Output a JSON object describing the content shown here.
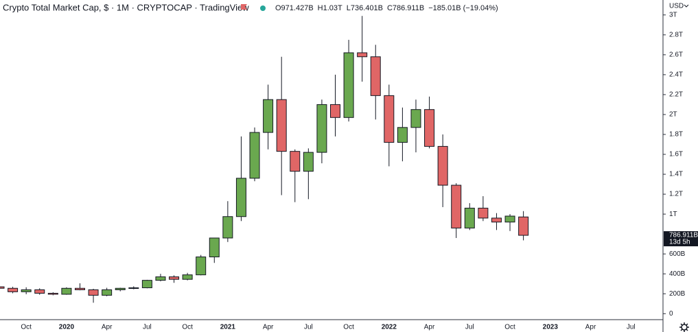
{
  "chart_data": {
    "type": "candlestick",
    "title": "Crypto Total Market Cap, $ · 1M · CRYPTOCAP · TradingView",
    "ohlc_header": [
      "O971.427B",
      "H1.03T",
      "L736.401B",
      "C786.911B",
      "−185.01B (−19.04%)"
    ],
    "currency": "USD",
    "last_price_label": "786.911B",
    "countdown": "13d 5h",
    "up_color": "#6aa84f",
    "down_color": "#e06666",
    "categories": [
      null,
      null,
      "Oct",
      null,
      null,
      "2020",
      null,
      null,
      "Apr",
      null,
      null,
      "Jul",
      null,
      null,
      "Oct",
      null,
      null,
      "2021",
      null,
      null,
      "Apr",
      null,
      null,
      "Jul",
      null,
      null,
      "Oct",
      null,
      null,
      "2022",
      null,
      null,
      "Apr",
      null,
      null,
      "Jul",
      null,
      null,
      "Oct",
      null,
      null,
      "2023",
      null,
      null,
      "Apr",
      null,
      null,
      "Jul"
    ],
    "open": [
      270,
      255,
      220,
      240,
      205,
      195,
      255,
      240,
      185,
      240,
      255,
      260,
      335,
      370,
      345,
      390,
      570,
      760,
      975,
      1360,
      1820,
      2150,
      1630,
      1430,
      1620,
      2100,
      1970,
      2620,
      2580,
      2190,
      1720,
      1870,
      2050,
      1680,
      1290,
      860,
      1060,
      960,
      920,
      971.427,
      null,
      null,
      null,
      null,
      null,
      null,
      null,
      null
    ],
    "high": [
      300,
      270,
      265,
      255,
      215,
      265,
      305,
      250,
      260,
      260,
      275,
      340,
      400,
      385,
      410,
      590,
      760,
      1130,
      1780,
      1870,
      2300,
      2580,
      1650,
      1660,
      2150,
      2400,
      2750,
      2990,
      2700,
      2300,
      2070,
      2150,
      2180,
      1800,
      1310,
      1110,
      1180,
      1010,
      1000,
      1030,
      null,
      null,
      null,
      null,
      null,
      null,
      null,
      null
    ],
    "low": [
      240,
      205,
      195,
      190,
      185,
      190,
      235,
      110,
      175,
      225,
      245,
      255,
      325,
      310,
      335,
      385,
      510,
      720,
      930,
      1330,
      1650,
      1190,
      1120,
      1150,
      1510,
      1780,
      1930,
      2330,
      1950,
      1480,
      1530,
      1620,
      1660,
      1070,
      760,
      840,
      930,
      840,
      830,
      736.401,
      null,
      null,
      null,
      null,
      null,
      null,
      null,
      null
    ],
    "close": [
      255,
      220,
      240,
      205,
      195,
      255,
      240,
      185,
      240,
      255,
      260,
      335,
      370,
      345,
      390,
      570,
      760,
      975,
      1360,
      1820,
      2150,
      1630,
      1430,
      1620,
      2100,
      1970,
      2620,
      2580,
      2190,
      1720,
      1870,
      2050,
      1680,
      1290,
      860,
      1060,
      960,
      920,
      980,
      786.911,
      null,
      null,
      null,
      null,
      null,
      null,
      null,
      null
    ],
    "ylim": [
      -60,
      3150
    ],
    "yticks": [
      0,
      {
        "value": 200,
        "label": "200B"
      },
      {
        "value": 400,
        "label": "400B"
      },
      {
        "value": 600,
        "label": "600B"
      },
      {
        "value": 1000,
        "label": "1T"
      },
      {
        "value": 1200,
        "label": "1.2T"
      },
      {
        "value": 1400,
        "label": "1.4T"
      },
      {
        "value": 1600,
        "label": "1.6T"
      },
      {
        "value": 1800,
        "label": "1.8T"
      },
      {
        "value": 2000,
        "label": "2T"
      },
      {
        "value": 2200,
        "label": "2.2T"
      },
      {
        "value": 2400,
        "label": "2.4T"
      },
      {
        "value": 2600,
        "label": "2.6T"
      },
      {
        "value": 2800,
        "label": "2.8T"
      },
      {
        "value": 3000,
        "label": "3T"
      }
    ]
  }
}
